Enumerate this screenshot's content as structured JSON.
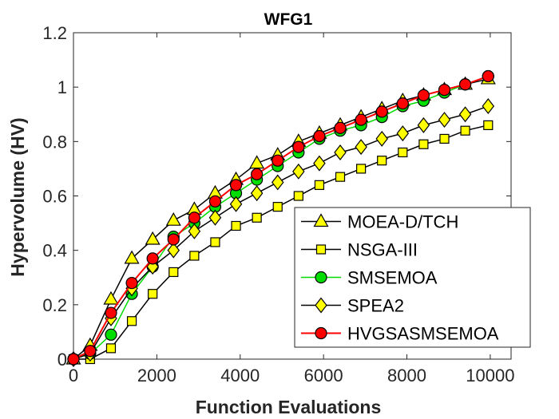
{
  "chart_data": {
    "type": "line",
    "title": "WFG1",
    "xlabel": "Function Evaluations",
    "ylabel": "Hypervolume (HV)",
    "xlim": [
      0,
      10500
    ],
    "ylim": [
      0,
      1.2
    ],
    "xticks": [
      0,
      2000,
      4000,
      6000,
      8000,
      10000
    ],
    "xtick_labels": [
      "0",
      "2000",
      "4000",
      "6000",
      "8000",
      "10000"
    ],
    "yticks": [
      0,
      0.2,
      0.4,
      0.6,
      0.8,
      1,
      1.2
    ],
    "ytick_labels": [
      "0",
      "0.2",
      "0.4",
      "0.6",
      "0.8",
      "1",
      "1.2"
    ],
    "grid": false,
    "legend_position": "bottom-right",
    "x": [
      0,
      400,
      900,
      1400,
      1900,
      2400,
      2900,
      3400,
      3900,
      4400,
      4900,
      5400,
      5900,
      6400,
      6900,
      7400,
      7900,
      8400,
      8900,
      9400,
      9950
    ],
    "series": [
      {
        "name": "MOEA-D/TCH",
        "line_color": "#000000",
        "marker": "triangle",
        "marker_fill": "#ffff00",
        "values": [
          0.0,
          0.05,
          0.22,
          0.37,
          0.44,
          0.51,
          0.55,
          0.61,
          0.66,
          0.72,
          0.75,
          0.8,
          0.83,
          0.86,
          0.89,
          0.92,
          0.95,
          0.97,
          0.99,
          1.01,
          1.03
        ]
      },
      {
        "name": "NSGA-III",
        "line_color": "#000000",
        "marker": "square",
        "marker_fill": "#ffff00",
        "values": [
          0.0,
          0.0,
          0.04,
          0.14,
          0.24,
          0.32,
          0.38,
          0.43,
          0.49,
          0.52,
          0.56,
          0.6,
          0.64,
          0.67,
          0.7,
          0.73,
          0.76,
          0.79,
          0.81,
          0.84,
          0.86
        ]
      },
      {
        "name": "SMSEMOA",
        "line_color": "#00dd00",
        "marker": "circle",
        "marker_fill": "#00dd00",
        "values": [
          0.0,
          0.02,
          0.09,
          0.24,
          0.34,
          0.45,
          0.5,
          0.56,
          0.61,
          0.66,
          0.71,
          0.76,
          0.81,
          0.84,
          0.86,
          0.89,
          0.93,
          0.95,
          0.98,
          1.01,
          1.04
        ]
      },
      {
        "name": "SPEA2",
        "line_color": "#000000",
        "marker": "diamond",
        "marker_fill": "#ffff00",
        "values": [
          0.0,
          0.02,
          0.15,
          0.26,
          0.34,
          0.4,
          0.47,
          0.52,
          0.57,
          0.61,
          0.65,
          0.69,
          0.72,
          0.76,
          0.78,
          0.81,
          0.83,
          0.86,
          0.88,
          0.9,
          0.93
        ]
      },
      {
        "name": "HVGSASMSEMOA",
        "line_color": "#ff0000",
        "marker": "circle",
        "marker_fill": "#ff0000",
        "values": [
          0.0,
          0.03,
          0.17,
          0.28,
          0.37,
          0.44,
          0.52,
          0.58,
          0.64,
          0.68,
          0.73,
          0.78,
          0.82,
          0.85,
          0.88,
          0.91,
          0.94,
          0.97,
          0.99,
          1.01,
          1.04
        ]
      }
    ]
  }
}
